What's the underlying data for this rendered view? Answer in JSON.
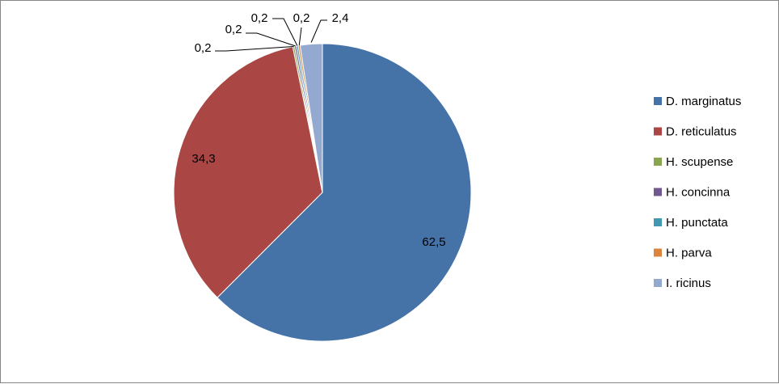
{
  "chart_data": {
    "type": "pie",
    "title": "",
    "categories": [
      "D. marginatus",
      "D. reticulatus",
      "H. scupense",
      "H. concinna",
      "H. punctata",
      "H. parva",
      "I. ricinus"
    ],
    "values": [
      62.5,
      34.3,
      0.2,
      0.2,
      0.2,
      0.2,
      2.4
    ],
    "value_labels": [
      "62,5",
      "34,3",
      "0,2",
      "0,2",
      "0,2",
      "0,2",
      "2,4"
    ],
    "colors": [
      "#4572A7",
      "#AA4643",
      "#89A54E",
      "#71588F",
      "#4198AF",
      "#DB843D",
      "#93A9CF"
    ],
    "legend_position": "right",
    "start_angle": "12 o'clock",
    "direction": "clockwise"
  }
}
